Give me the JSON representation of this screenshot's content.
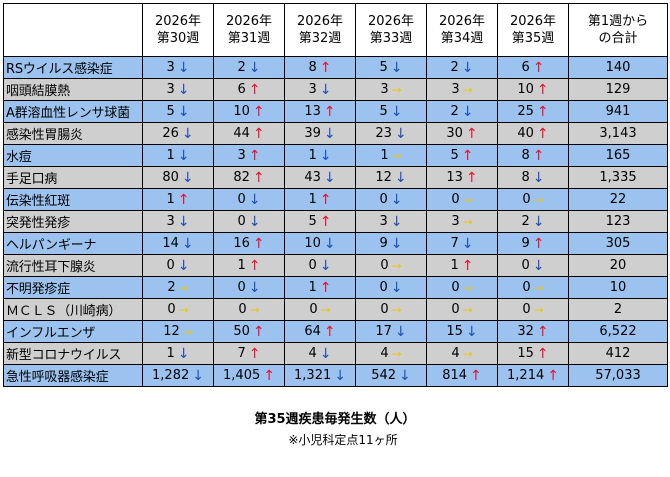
{
  "table": {
    "headers": [
      {
        "line1": "2026年",
        "line2": "第30週"
      },
      {
        "line1": "2026年",
        "line2": "第31週"
      },
      {
        "line1": "2026年",
        "line2": "第32週"
      },
      {
        "line1": "2026年",
        "line2": "第33週"
      },
      {
        "line1": "2026年",
        "line2": "第34週"
      },
      {
        "line1": "2026年",
        "line2": "第35週"
      },
      {
        "line1": "第1週から",
        "line2": "の合計"
      }
    ],
    "colors": {
      "row_a": "#9cc3ef",
      "row_b": "#cfcfcf",
      "up": "#e8102b",
      "down": "#1f4fb8",
      "flat": "#ecc413"
    },
    "rows": [
      {
        "name": "RSウイルス感染症",
        "cells": [
          {
            "v": "3",
            "t": "down"
          },
          {
            "v": "2",
            "t": "down"
          },
          {
            "v": "8",
            "t": "up"
          },
          {
            "v": "5",
            "t": "down"
          },
          {
            "v": "2",
            "t": "down"
          },
          {
            "v": "6",
            "t": "up"
          }
        ],
        "total": "140"
      },
      {
        "name": "咽頭結膜熱",
        "cells": [
          {
            "v": "3",
            "t": "down"
          },
          {
            "v": "6",
            "t": "up"
          },
          {
            "v": "3",
            "t": "down"
          },
          {
            "v": "3",
            "t": "flat"
          },
          {
            "v": "3",
            "t": "flat"
          },
          {
            "v": "10",
            "t": "up"
          }
        ],
        "total": "129"
      },
      {
        "name": "A群溶血性レンサ球菌",
        "cells": [
          {
            "v": "5",
            "t": "down"
          },
          {
            "v": "10",
            "t": "up"
          },
          {
            "v": "13",
            "t": "up"
          },
          {
            "v": "5",
            "t": "down"
          },
          {
            "v": "2",
            "t": "down"
          },
          {
            "v": "25",
            "t": "up"
          }
        ],
        "total": "941"
      },
      {
        "name": "感染性胃腸炎",
        "cells": [
          {
            "v": "26",
            "t": "down"
          },
          {
            "v": "44",
            "t": "up"
          },
          {
            "v": "39",
            "t": "down"
          },
          {
            "v": "23",
            "t": "down"
          },
          {
            "v": "30",
            "t": "up"
          },
          {
            "v": "40",
            "t": "up"
          }
        ],
        "total": "3,143"
      },
      {
        "name": "水痘",
        "cells": [
          {
            "v": "1",
            "t": "down"
          },
          {
            "v": "3",
            "t": "up"
          },
          {
            "v": "1",
            "t": "down"
          },
          {
            "v": "1",
            "t": "flat"
          },
          {
            "v": "5",
            "t": "up"
          },
          {
            "v": "8",
            "t": "up"
          }
        ],
        "total": "165"
      },
      {
        "name": "手足口病",
        "cells": [
          {
            "v": "80",
            "t": "down"
          },
          {
            "v": "82",
            "t": "up"
          },
          {
            "v": "43",
            "t": "down"
          },
          {
            "v": "12",
            "t": "down"
          },
          {
            "v": "13",
            "t": "up"
          },
          {
            "v": "8",
            "t": "down"
          }
        ],
        "total": "1,335"
      },
      {
        "name": "伝染性紅斑",
        "cells": [
          {
            "v": "1",
            "t": "up"
          },
          {
            "v": "0",
            "t": "down"
          },
          {
            "v": "1",
            "t": "up"
          },
          {
            "v": "0",
            "t": "down"
          },
          {
            "v": "0",
            "t": "flat"
          },
          {
            "v": "0",
            "t": "flat"
          }
        ],
        "total": "22"
      },
      {
        "name": "突発性発疹",
        "cells": [
          {
            "v": "3",
            "t": "down"
          },
          {
            "v": "0",
            "t": "down"
          },
          {
            "v": "5",
            "t": "up"
          },
          {
            "v": "3",
            "t": "down"
          },
          {
            "v": "3",
            "t": "flat"
          },
          {
            "v": "2",
            "t": "down"
          }
        ],
        "total": "123"
      },
      {
        "name": "ヘルパンギーナ",
        "cells": [
          {
            "v": "14",
            "t": "down"
          },
          {
            "v": "16",
            "t": "up"
          },
          {
            "v": "10",
            "t": "down"
          },
          {
            "v": "9",
            "t": "down"
          },
          {
            "v": "7",
            "t": "down"
          },
          {
            "v": "9",
            "t": "up"
          }
        ],
        "total": "305"
      },
      {
        "name": "流行性耳下腺炎",
        "cells": [
          {
            "v": "0",
            "t": "down"
          },
          {
            "v": "1",
            "t": "up"
          },
          {
            "v": "0",
            "t": "down"
          },
          {
            "v": "0",
            "t": "flat"
          },
          {
            "v": "1",
            "t": "up"
          },
          {
            "v": "0",
            "t": "down"
          }
        ],
        "total": "20"
      },
      {
        "name": "不明発疹症",
        "cells": [
          {
            "v": "2",
            "t": "flat"
          },
          {
            "v": "0",
            "t": "down"
          },
          {
            "v": "1",
            "t": "up"
          },
          {
            "v": "0",
            "t": "down"
          },
          {
            "v": "0",
            "t": "flat"
          },
          {
            "v": "0",
            "t": "flat"
          }
        ],
        "total": "10"
      },
      {
        "name": "ＭＣＬＳ（川崎病）",
        "cells": [
          {
            "v": "0",
            "t": "flat"
          },
          {
            "v": "0",
            "t": "flat"
          },
          {
            "v": "0",
            "t": "flat"
          },
          {
            "v": "0",
            "t": "flat"
          },
          {
            "v": "0",
            "t": "flat"
          },
          {
            "v": "0",
            "t": "flat"
          }
        ],
        "total": "2"
      },
      {
        "name": "インフルエンザ",
        "cells": [
          {
            "v": "12",
            "t": "flat"
          },
          {
            "v": "50",
            "t": "up"
          },
          {
            "v": "64",
            "t": "up"
          },
          {
            "v": "17",
            "t": "down"
          },
          {
            "v": "15",
            "t": "down"
          },
          {
            "v": "32",
            "t": "up"
          }
        ],
        "total": "6,522"
      },
      {
        "name": "新型コロナウイルス",
        "cells": [
          {
            "v": "1",
            "t": "down"
          },
          {
            "v": "7",
            "t": "up"
          },
          {
            "v": "4",
            "t": "down"
          },
          {
            "v": "4",
            "t": "flat"
          },
          {
            "v": "4",
            "t": "flat"
          },
          {
            "v": "15",
            "t": "up"
          }
        ],
        "total": "412"
      },
      {
        "name": "急性呼吸器感染症",
        "cells": [
          {
            "v": "1,282",
            "t": "down"
          },
          {
            "v": "1,405",
            "t": "up"
          },
          {
            "v": "1,321",
            "t": "down"
          },
          {
            "v": "542",
            "t": "down"
          },
          {
            "v": "814",
            "t": "up"
          },
          {
            "v": "1,214",
            "t": "up"
          }
        ],
        "total": "57,033"
      }
    ]
  },
  "caption": {
    "title": "第35週疾患毎発生数（人）",
    "note": "※小児科定点11ヶ所"
  }
}
